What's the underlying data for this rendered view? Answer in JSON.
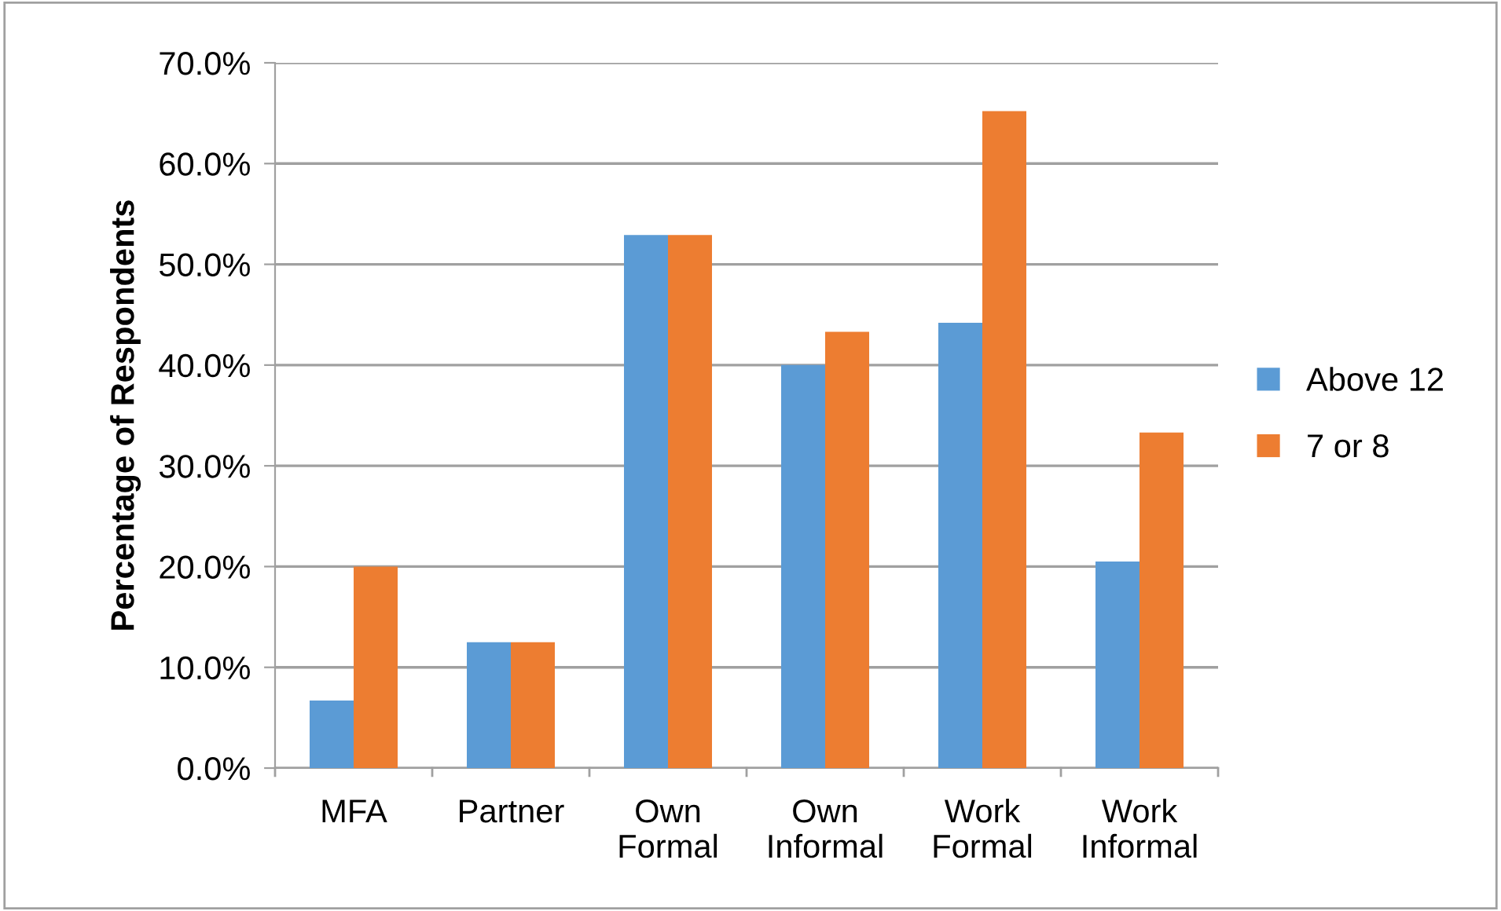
{
  "chart_data": {
    "type": "bar",
    "ylabel": "Percentage of Respondents",
    "categories": [
      "MFA",
      "Partner",
      "Own\nFormal",
      "Own\nInformal",
      "Work\nFormal",
      "Work\nInformal"
    ],
    "series": [
      {
        "name": "Above 12",
        "color": "#5b9bd5",
        "values": [
          6.7,
          12.5,
          52.9,
          40.0,
          44.2,
          20.5
        ]
      },
      {
        "name": "7 or 8",
        "color": "#ed7d31",
        "values": [
          20.0,
          12.5,
          52.9,
          43.3,
          65.2,
          33.3
        ]
      }
    ],
    "ylim": [
      0,
      70
    ],
    "yticks": [
      {
        "value": 0,
        "label": "0.0%"
      },
      {
        "value": 10,
        "label": "10.0%"
      },
      {
        "value": 20,
        "label": "20.0%"
      },
      {
        "value": 30,
        "label": "30.0%"
      },
      {
        "value": 40,
        "label": "40.0%"
      },
      {
        "value": 50,
        "label": "50.0%"
      },
      {
        "value": 60,
        "label": "60.0%"
      },
      {
        "value": 70,
        "label": "70.0%"
      }
    ],
    "grid": "y",
    "legend": "right"
  }
}
